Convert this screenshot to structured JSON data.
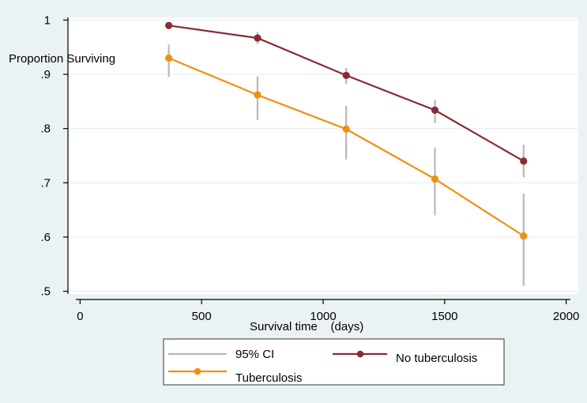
{
  "chart_data": {
    "type": "line",
    "title": "",
    "xlabel": "Survival time    (days)",
    "ylabel": "Proportion Surviving",
    "xlim": [
      -50,
      2050
    ],
    "ylim": [
      0.495,
      1.005
    ],
    "xticks": [
      0,
      500,
      1000,
      1500,
      2000
    ],
    "xtick_labels": [
      "0",
      "500",
      "1000",
      "1500",
      "2000"
    ],
    "yticks": [
      0.5,
      0.6,
      0.7,
      0.8,
      0.9,
      1.0
    ],
    "ytick_labels": [
      ".5",
      ".6",
      ".7",
      ".8",
      ".9",
      "1"
    ],
    "grid": "horizontal",
    "legend_position": "bottom",
    "series": [
      {
        "name": "No tuberculosis",
        "color": "#8b2a35",
        "marker": "circle",
        "x": [
          365,
          730,
          1095,
          1460,
          1825
        ],
        "y": [
          0.99,
          0.967,
          0.898,
          0.834,
          0.74
        ]
      },
      {
        "name": "Tuberculosis",
        "color": "#f0900f",
        "marker": "circle",
        "x": [
          365,
          730,
          1095,
          1460,
          1825
        ],
        "y": [
          0.93,
          0.862,
          0.799,
          0.707,
          0.602
        ]
      }
    ],
    "ci": {
      "name": "95% CI",
      "color": "#b8b8b8",
      "intervals": [
        {
          "x": 365,
          "low": 0.984,
          "high": 0.996
        },
        {
          "x": 730,
          "low": 0.956,
          "high": 0.978
        },
        {
          "x": 1095,
          "low": 0.882,
          "high": 0.912
        },
        {
          "x": 1460,
          "low": 0.81,
          "high": 0.853
        },
        {
          "x": 1825,
          "low": 0.71,
          "high": 0.77
        },
        {
          "x": 365,
          "low": 0.895,
          "high": 0.955
        },
        {
          "x": 730,
          "low": 0.816,
          "high": 0.896
        },
        {
          "x": 1095,
          "low": 0.743,
          "high": 0.842
        },
        {
          "x": 1460,
          "low": 0.64,
          "high": 0.765
        },
        {
          "x": 1825,
          "low": 0.51,
          "high": 0.68
        }
      ]
    },
    "legend": [
      {
        "label": "95% CI",
        "kind": "ci"
      },
      {
        "label": "No tuberculosis",
        "kind": "series",
        "series_index": 0
      },
      {
        "label": "Tuberculosis",
        "kind": "series",
        "series_index": 1
      }
    ]
  }
}
